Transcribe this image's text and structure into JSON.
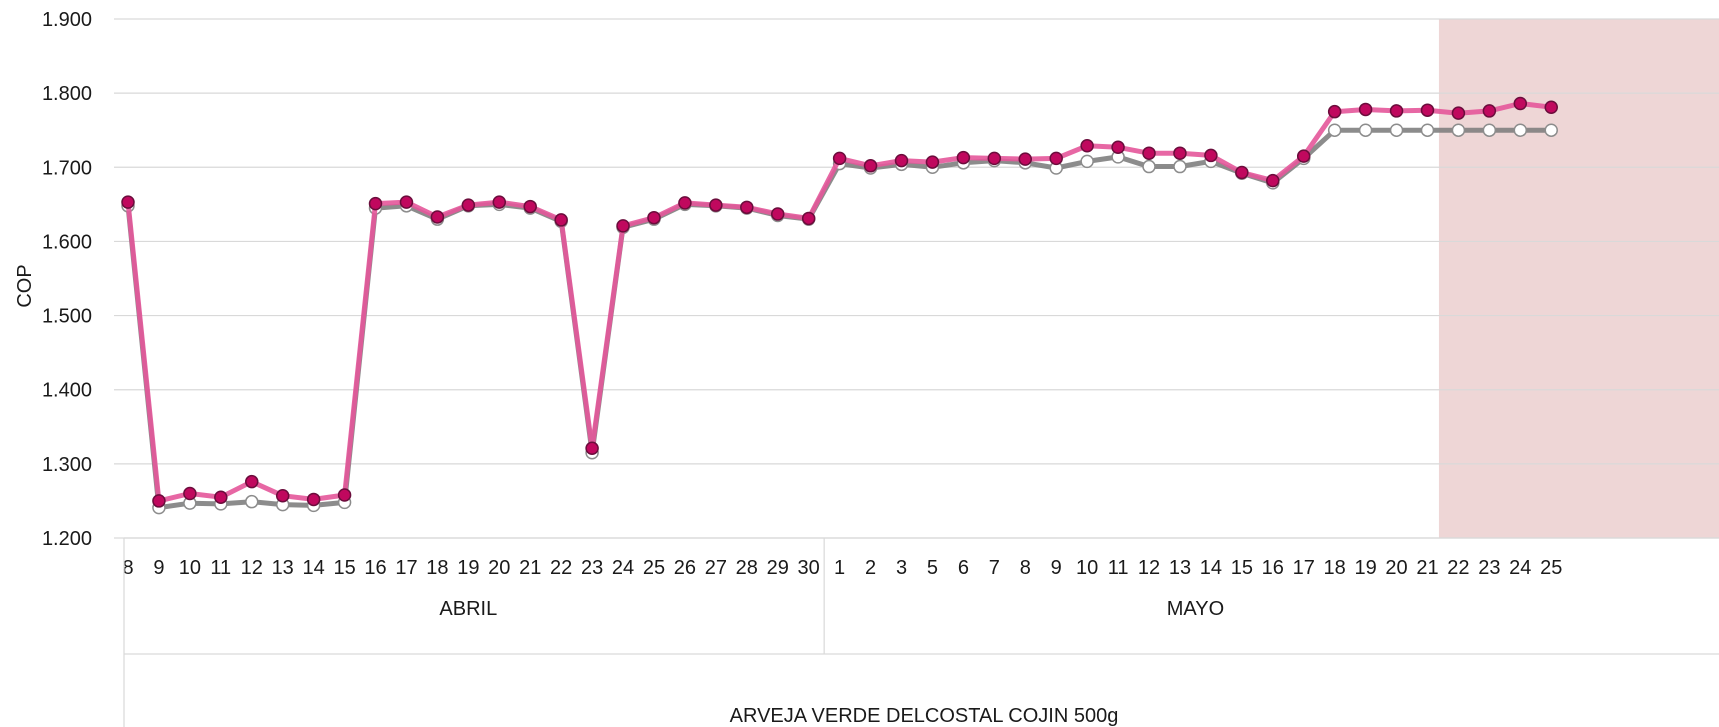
{
  "chart_data": {
    "type": "line",
    "ylabel": "COP",
    "ylim": [
      1200,
      1900
    ],
    "ytick_step": 100,
    "ytick_labels": [
      "1.200",
      "1.300",
      "1.400",
      "1.500",
      "1.600",
      "1.700",
      "1.800",
      "1.900"
    ],
    "grid": true,
    "x": [
      "8",
      "9",
      "10",
      "11",
      "12",
      "13",
      "14",
      "15",
      "16",
      "17",
      "18",
      "19",
      "20",
      "21",
      "22",
      "23",
      "24",
      "25",
      "26",
      "27",
      "28",
      "29",
      "30",
      "1",
      "2",
      "3",
      "5",
      "6",
      "7",
      "8",
      "9",
      "10",
      "11",
      "12",
      "13",
      "14",
      "15",
      "16",
      "17",
      "18",
      "19",
      "20",
      "21",
      "22",
      "23",
      "24",
      "25"
    ],
    "month_groups": [
      {
        "label": "ABRIL",
        "count": 23
      },
      {
        "label": "MAYO",
        "count": 24
      }
    ],
    "product_label": "ARVEJA VERDE DELCOSTAL COJIN 500g",
    "highlight_start_index": 43,
    "colors": {
      "series_pink": "#e4569a",
      "marker_pink": "#c0085e",
      "series_gray": "#7f7f7f",
      "marker_gray_fill": "#ffffff",
      "highlight": "#eed6d6",
      "grid": "#d9d9d9"
    },
    "series": [
      {
        "values": [
          1653,
          1250,
          1260,
          1255,
          1276,
          1257,
          1252,
          1258,
          1651,
          1653,
          1633,
          1649,
          1653,
          1647,
          1629,
          1321,
          1621,
          1632,
          1652,
          1649,
          1646,
          1637,
          1631,
          1712,
          1702,
          1709,
          1707,
          1713,
          1712,
          1711,
          1712,
          1729,
          1727,
          1719,
          1719,
          1716,
          1693,
          1682,
          1715,
          1775,
          1778,
          1776,
          1777,
          1773,
          1776,
          1786,
          1781
        ]
      },
      {
        "values": [
          1648,
          1241,
          1247,
          1246,
          1249,
          1245,
          1244,
          1248,
          1645,
          1648,
          1630,
          1648,
          1650,
          1645,
          1627,
          1315,
          1619,
          1630,
          1650,
          1648,
          1645,
          1635,
          1630,
          1705,
          1699,
          1704,
          1700,
          1706,
          1709,
          1706,
          1699,
          1708,
          1714,
          1701,
          1701,
          1708,
          1692,
          1679,
          1712,
          1750,
          1750,
          1750,
          1750,
          1750,
          1750,
          1750,
          1750
        ]
      }
    ]
  }
}
